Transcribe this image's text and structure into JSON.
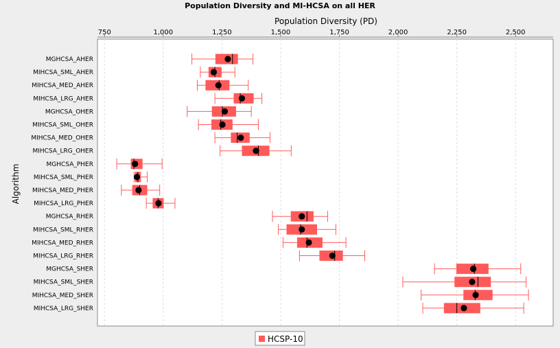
{
  "chart_data": {
    "type": "boxplot",
    "orientation": "horizontal",
    "title": "Population Diversity and MI-HCSA on all HER",
    "xlabel": "Population Diversity  (PD)",
    "ylabel": "Algorithm",
    "xlim": [
      720,
      2660
    ],
    "x_ticks": [
      750,
      1000,
      1250,
      1500,
      1750,
      2000,
      2250,
      2500
    ],
    "x_tick_labels": [
      "750",
      "1,000",
      "1,250",
      "1,500",
      "1,750",
      "2,000",
      "2,250",
      "2,500"
    ],
    "grid": true,
    "legend": {
      "position": "bottom-center",
      "entries": [
        "HCSP-10"
      ]
    },
    "series_color": "#ff5a5a",
    "categories": [
      "MGHCSA_AHER",
      "MIHCSA_SML_AHER",
      "MIHCSA_MED_AHER",
      "MIHCSA_LRG_AHER",
      "MGHCSA_OHER",
      "MIHCSA_SML_OHER",
      "MIHCSA_MED_OHER",
      "MIHCSA_LRG_OHER",
      "MGHCSA_PHER",
      "MIHCSA_SML_PHER",
      "MIHCSA_MED_PHER",
      "MIHCSA_LRG_PHER",
      "MGHCSA_RHER",
      "MIHCSA_SML_RHER",
      "MIHCSA_MED_RHER",
      "MIHCSA_LRG_RHER",
      "MGHCSA_SHER",
      "MIHCSA_SML_SHER",
      "MIHCSA_MED_SHER",
      "MIHCSA_LRG_SHER"
    ],
    "series": [
      {
        "name": "HCSP-10",
        "boxes": [
          {
            "min": 1122,
            "q1": 1222,
            "median": 1295,
            "q3": 1318,
            "max": 1382,
            "mean": 1275
          },
          {
            "min": 1158,
            "q1": 1193,
            "median": 1220,
            "q3": 1248,
            "max": 1305,
            "mean": 1215
          },
          {
            "min": 1145,
            "q1": 1180,
            "median": 1238,
            "q3": 1282,
            "max": 1362,
            "mean": 1235
          },
          {
            "min": 1220,
            "q1": 1300,
            "median": 1328,
            "q3": 1385,
            "max": 1420,
            "mean": 1335
          },
          {
            "min": 1102,
            "q1": 1207,
            "median": 1252,
            "q3": 1310,
            "max": 1375,
            "mean": 1262
          },
          {
            "min": 1150,
            "q1": 1205,
            "median": 1245,
            "q3": 1295,
            "max": 1405,
            "mean": 1252
          },
          {
            "min": 1220,
            "q1": 1288,
            "median": 1315,
            "q3": 1368,
            "max": 1455,
            "mean": 1330
          },
          {
            "min": 1242,
            "q1": 1335,
            "median": 1405,
            "q3": 1452,
            "max": 1545,
            "mean": 1395
          },
          {
            "min": 802,
            "q1": 862,
            "median": 875,
            "q3": 912,
            "max": 995,
            "mean": 880
          },
          {
            "min": 876,
            "q1": 880,
            "median": 892,
            "q3": 905,
            "max": 932,
            "mean": 888
          },
          {
            "min": 822,
            "q1": 868,
            "median": 900,
            "q3": 932,
            "max": 985,
            "mean": 895
          },
          {
            "min": 928,
            "q1": 955,
            "median": 978,
            "q3": 1002,
            "max": 1050,
            "mean": 980
          },
          {
            "min": 1465,
            "q1": 1543,
            "median": 1612,
            "q3": 1640,
            "max": 1700,
            "mean": 1590
          },
          {
            "min": 1490,
            "q1": 1525,
            "median": 1585,
            "q3": 1655,
            "max": 1735,
            "mean": 1590
          },
          {
            "min": 1510,
            "q1": 1570,
            "median": 1612,
            "q3": 1678,
            "max": 1778,
            "mean": 1620
          },
          {
            "min": 1580,
            "q1": 1665,
            "median": 1730,
            "q3": 1765,
            "max": 1858,
            "mean": 1720
          },
          {
            "min": 2155,
            "q1": 2248,
            "median": 2325,
            "q3": 2385,
            "max": 2522,
            "mean": 2320
          },
          {
            "min": 2020,
            "q1": 2240,
            "median": 2340,
            "q3": 2395,
            "max": 2545,
            "mean": 2315
          },
          {
            "min": 2098,
            "q1": 2278,
            "median": 2328,
            "q3": 2402,
            "max": 2555,
            "mean": 2330
          },
          {
            "min": 2105,
            "q1": 2195,
            "median": 2250,
            "q3": 2350,
            "max": 2535,
            "mean": 2280
          }
        ]
      }
    ]
  }
}
